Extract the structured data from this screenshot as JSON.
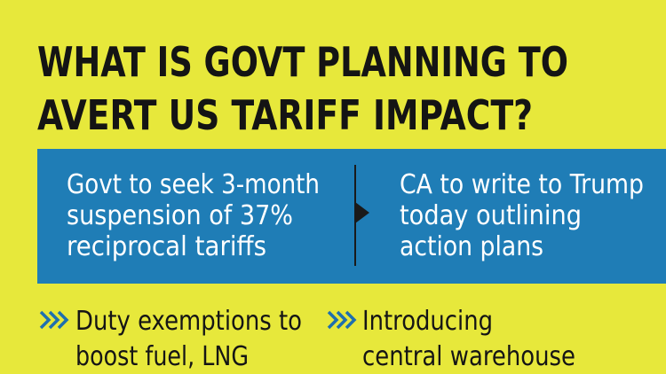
{
  "header": {
    "title_lines": [
      "WHAT IS GOVT PLANNING TO",
      "AVERT US TARIFF IMPACT?"
    ]
  },
  "panel": {
    "items": [
      {
        "lines": [
          "Govt to seek 3-month",
          "suspension of 37%",
          "reciprocal tariffs"
        ]
      },
      {
        "lines": [
          "CA to write to Trump",
          "today outlining",
          "action plans"
        ]
      }
    ]
  },
  "bullets": [
    {
      "lines": [
        "Duty exemptions to",
        "boost fuel, LNG"
      ]
    },
    {
      "lines": [
        "Introducing",
        "central warehouse"
      ]
    }
  ]
}
